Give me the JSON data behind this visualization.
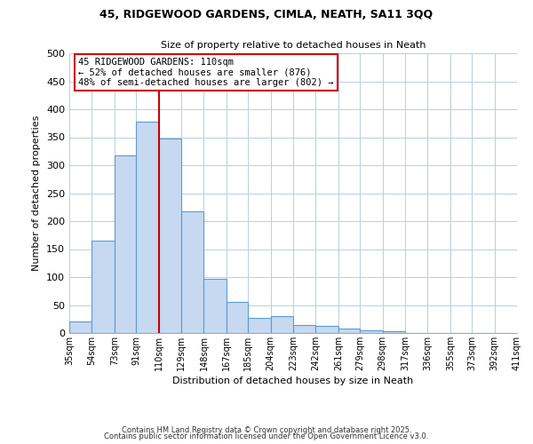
{
  "title_line1": "45, RIDGEWOOD GARDENS, CIMLA, NEATH, SA11 3QQ",
  "title_line2": "Size of property relative to detached houses in Neath",
  "xlabel": "Distribution of detached houses by size in Neath",
  "ylabel": "Number of detached properties",
  "bar_edges": [
    35,
    54,
    73,
    91,
    110,
    129,
    148,
    167,
    185,
    204,
    223,
    242,
    261,
    279,
    298,
    317,
    336,
    355,
    373,
    392,
    411
  ],
  "bar_heights": [
    20,
    165,
    318,
    378,
    348,
    218,
    97,
    55,
    27,
    30,
    15,
    12,
    8,
    5,
    3,
    0,
    0,
    0,
    0,
    0
  ],
  "bar_color": "#c6d9f0",
  "bar_edge_color": "#5b9bd5",
  "vline_x": 110,
  "vline_color": "#cc0000",
  "ylim": [
    0,
    500
  ],
  "annotation_line1": "45 RIDGEWOOD GARDENS: 110sqm",
  "annotation_line2": "← 52% of detached houses are smaller (876)",
  "annotation_line3": "48% of semi-detached houses are larger (802) →",
  "footnote1": "Contains HM Land Registry data © Crown copyright and database right 2025.",
  "footnote2": "Contains public sector information licensed under the Open Government Licence v3.0.",
  "tick_labels": [
    "35sqm",
    "54sqm",
    "73sqm",
    "91sqm",
    "110sqm",
    "129sqm",
    "148sqm",
    "167sqm",
    "185sqm",
    "204sqm",
    "223sqm",
    "242sqm",
    "261sqm",
    "279sqm",
    "298sqm",
    "317sqm",
    "336sqm",
    "355sqm",
    "373sqm",
    "392sqm",
    "411sqm"
  ],
  "background_color": "#ffffff",
  "grid_color": "#b8cfe0",
  "yticks": [
    0,
    50,
    100,
    150,
    200,
    250,
    300,
    350,
    400,
    450,
    500
  ]
}
